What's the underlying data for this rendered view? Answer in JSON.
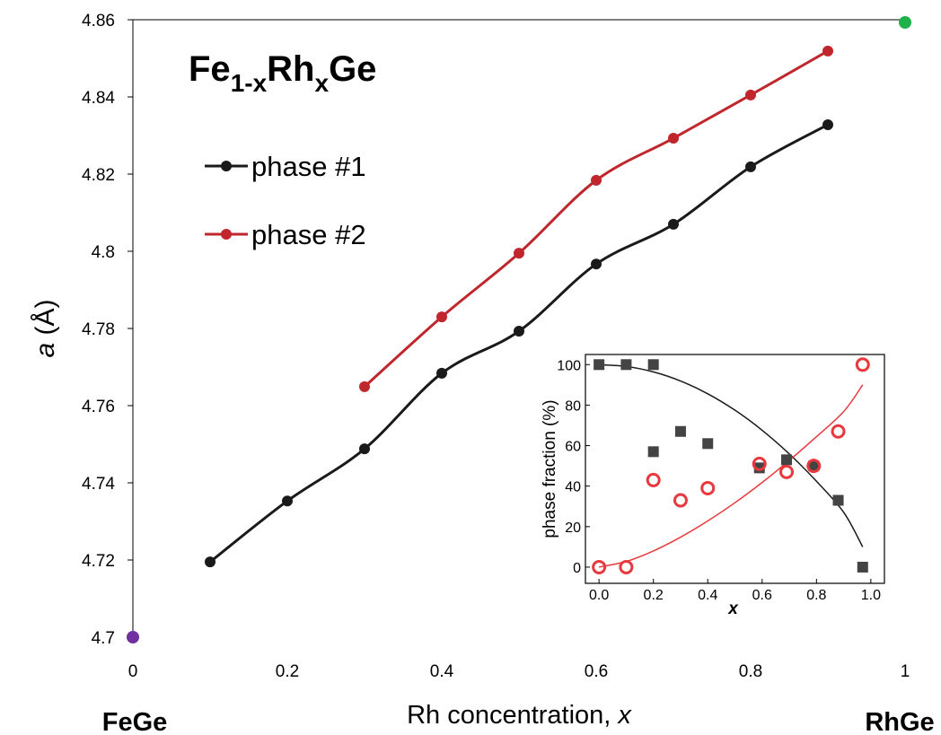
{
  "chart_data": [
    {
      "type": "line",
      "title_parts": [
        "Fe",
        "1-x",
        "Rh",
        "x",
        "Ge"
      ],
      "x_label_parts": [
        "Rh concentration, ",
        "x"
      ],
      "y_label_parts": [
        "a",
        " (Å)"
      ],
      "xlim": [
        0,
        1
      ],
      "xticks": [
        0,
        0.2,
        0.4,
        0.6,
        0.8,
        1
      ],
      "ylim": [
        4.7,
        4.86
      ],
      "yticks": [
        4.7,
        4.72,
        4.74,
        4.76,
        4.78,
        4.8,
        4.82,
        4.84,
        4.86
      ],
      "series": [
        {
          "name": "phase #1",
          "color": "#1a1a1a",
          "x": [
            0.1,
            0.2,
            0.3,
            0.4,
            0.5,
            0.6,
            0.7,
            0.8,
            0.9
          ],
          "values": [
            4.7195,
            4.7353,
            4.7488,
            4.7684,
            4.7793,
            4.7967,
            4.807,
            4.8219,
            4.8328
          ]
        },
        {
          "name": "phase #2",
          "color": "#c0272d",
          "x": [
            0.3,
            0.4,
            0.5,
            0.6,
            0.7,
            0.8,
            0.9
          ],
          "values": [
            4.7649,
            4.783,
            4.7995,
            4.8184,
            4.8293,
            4.8405,
            4.8519
          ]
        }
      ],
      "endpoints": [
        {
          "label": "FeGe",
          "x": 0,
          "y": 4.7,
          "color": "#7030a0"
        },
        {
          "label": "RhGe",
          "x": 1,
          "y": 4.8593,
          "color": "#1fb24a"
        }
      ]
    },
    {
      "type": "scatter",
      "x_label": "x",
      "y_label": "phase fraction (%)",
      "xlim": [
        -0.05,
        1.05
      ],
      "xticks": [
        {
          "value": 0,
          "label": "0.0"
        },
        0.2,
        0.4,
        0.6,
        0.8,
        {
          "value": 1,
          "label": "1.0"
        }
      ],
      "ylim": [
        -8,
        105
      ],
      "yticks": [
        0,
        20,
        40,
        60,
        80,
        100
      ],
      "series": [
        {
          "marker": "square",
          "color": "#444444",
          "x": [
            0,
            0.1,
            0.2,
            0.2,
            0.3,
            0.4,
            0.59,
            0.69,
            0.79,
            0.88,
            0.97
          ],
          "values": [
            100,
            100,
            100,
            57,
            67,
            61,
            49,
            53,
            50,
            33,
            0
          ]
        },
        {
          "marker": "circle",
          "color": "#e8393f",
          "x": [
            0,
            0.1,
            0.2,
            0.3,
            0.4,
            0.59,
            0.69,
            0.79,
            0.88,
            0.97
          ],
          "values": [
            0,
            0,
            43,
            33,
            39,
            51,
            47,
            50,
            67,
            100
          ]
        }
      ],
      "fits": [
        {
          "color": "#1a1a1a",
          "x": [
            0,
            0.1,
            0.2,
            0.3,
            0.4,
            0.5,
            0.6,
            0.7,
            0.8,
            0.9,
            0.97
          ],
          "values": [
            100,
            99.1,
            96.4,
            91.9,
            85.6,
            77.5,
            67.6,
            55.9,
            42.4,
            27.1,
            10
          ]
        },
        {
          "color": "#e8393f",
          "x": [
            0,
            0.1,
            0.2,
            0.3,
            0.4,
            0.5,
            0.6,
            0.7,
            0.8,
            0.9,
            0.97
          ],
          "values": [
            0,
            2.8,
            8.0,
            14.8,
            22.8,
            31.8,
            41.8,
            52.7,
            64.4,
            76.8,
            90
          ]
        }
      ]
    }
  ]
}
